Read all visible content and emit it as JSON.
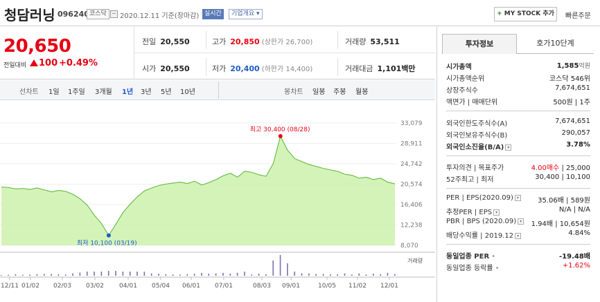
{
  "header": {
    "company": "청담러닝",
    "code": "096240",
    "market": "코스닥",
    "date": "2020.12.11 기준(장마감)",
    "realtime": "실시간",
    "company_info": "기업개요",
    "mystock_plus": "+",
    "mystock": "MY STOCK 추가",
    "quick_order": "빠른주문"
  },
  "quote": {
    "price": "20,650",
    "change_label": "전일대비",
    "change": "100",
    "change_pct": "+0.49%",
    "prev_close_label": "전일",
    "prev_close": "20,550",
    "high_label": "고가",
    "high": "20,850",
    "upper_limit": "(상한가 26,700)",
    "volume_label": "거래량",
    "volume": "53,511",
    "open_label": "시가",
    "open": "20,550",
    "low_label": "저가",
    "low": "20,400",
    "lower_limit": "(하한가 14,400)",
    "amount_label": "거래대금",
    "amount": "1,101",
    "amount_unit": "백만"
  },
  "period_bar": {
    "line_label": "선차트",
    "periods": [
      "1일",
      "1주일",
      "3개월",
      "1년",
      "3년",
      "5년",
      "10년"
    ],
    "selected": "1년",
    "candle_label": "봉차트",
    "candles": [
      "일봉",
      "주봉",
      "월봉"
    ]
  },
  "chart_data": {
    "type": "area",
    "y_ticks": [
      "33,079",
      "28,911",
      "24,742",
      "20,574",
      "16,406",
      "12,238",
      "8,070"
    ],
    "ylim": [
      8070,
      33079
    ],
    "x_labels": [
      "12/11",
      "01/02",
      "02/03",
      "03/02",
      "04/01",
      "05/04",
      "06/01",
      "07/01",
      "08/03",
      "09/01",
      "10/05",
      "11/02",
      "12/01"
    ],
    "max_label": "최고 30,400 (08/28)",
    "min_label": "최저 10,100 (03/19)",
    "volume_label": "거래량",
    "fill_color": "#c9f0a8",
    "line_color": "#6cc04a",
    "price_series": [
      [
        "12/11",
        20000
      ],
      [
        "12/18",
        19900
      ],
      [
        "12/26",
        19600
      ],
      [
        "01/02",
        19700
      ],
      [
        "01/09",
        19500
      ],
      [
        "01/16",
        19800
      ],
      [
        "01/23",
        19400
      ],
      [
        "01/31",
        19000
      ],
      [
        "02/07",
        19300
      ],
      [
        "02/14",
        19100
      ],
      [
        "02/21",
        18500
      ],
      [
        "02/28",
        17600
      ],
      [
        "03/06",
        16300
      ],
      [
        "03/12",
        14200
      ],
      [
        "03/16",
        12500
      ],
      [
        "03/19",
        10100
      ],
      [
        "03/24",
        12400
      ],
      [
        "03/31",
        14800
      ],
      [
        "04/07",
        16500
      ],
      [
        "04/14",
        18000
      ],
      [
        "04/21",
        19200
      ],
      [
        "04/28",
        19800
      ],
      [
        "05/06",
        20300
      ],
      [
        "05/13",
        20600
      ],
      [
        "05/20",
        20800
      ],
      [
        "05/27",
        21000
      ],
      [
        "06/03",
        20700
      ],
      [
        "06/10",
        21200
      ],
      [
        "06/17",
        20400
      ],
      [
        "06/24",
        20900
      ],
      [
        "07/01",
        21500
      ],
      [
        "07/08",
        22300
      ],
      [
        "07/15",
        22800
      ],
      [
        "07/22",
        22000
      ],
      [
        "07/29",
        23200
      ],
      [
        "08/05",
        23000
      ],
      [
        "08/12",
        22500
      ],
      [
        "08/19",
        22200
      ],
      [
        "08/24",
        24800
      ],
      [
        "08/28",
        30400
      ],
      [
        "09/01",
        27500
      ],
      [
        "09/07",
        25800
      ],
      [
        "09/14",
        25200
      ],
      [
        "09/21",
        24600
      ],
      [
        "09/28",
        24200
      ],
      [
        "10/05",
        23800
      ],
      [
        "10/12",
        23500
      ],
      [
        "10/19",
        23200
      ],
      [
        "10/26",
        22600
      ],
      [
        "11/02",
        22400
      ],
      [
        "11/09",
        21800
      ],
      [
        "11/16",
        22000
      ],
      [
        "11/23",
        21500
      ],
      [
        "11/30",
        21800
      ],
      [
        "12/04",
        21000
      ],
      [
        "12/11",
        20650
      ]
    ]
  },
  "tabs": {
    "invest": "투자정보",
    "hoga": "호가10단계"
  },
  "invest": {
    "market_cap_label": "시가총액",
    "market_cap": "1,585",
    "market_cap_unit": "억원",
    "rank_label": "시가총액순위",
    "rank": "코스닥 546위",
    "shares_label": "상장주식수",
    "shares": "7,674,651",
    "par_label": "액면가 | 매매단위",
    "par": "500원 | 1주",
    "foreign_limit_label": "외국인한도주식수(A)",
    "foreign_limit": "7,674,651",
    "foreign_hold_label": "외국인보유주식수(B)",
    "foreign_hold": "290,057",
    "foreign_ratio_label": "외국인소진율(B/A)",
    "foreign_ratio": "3.78%",
    "opinion_label": "투자의견 | 목표주가",
    "opinion": "4.00매수",
    "target": "25,000",
    "week52_label": "52주최고 | 최저",
    "week52": "30,400 | 10,100",
    "per_label": "PER | EPS(2020.09)",
    "per": "35.06배 | 589원",
    "est_per_label": "추정PER | EPS",
    "est_per": "N/A | N/A",
    "pbr_label": "PBR | BPS (2020.09)",
    "pbr": "1.94배 | 10,654원",
    "div_label": "배당수익률 | 2019.12",
    "div": "4.84%",
    "sector_per_label": "동일업종 PER",
    "sector_per": "-19.48배",
    "sector_chg_label": "동일업종 등락률",
    "sector_chg": "+1.62%"
  }
}
